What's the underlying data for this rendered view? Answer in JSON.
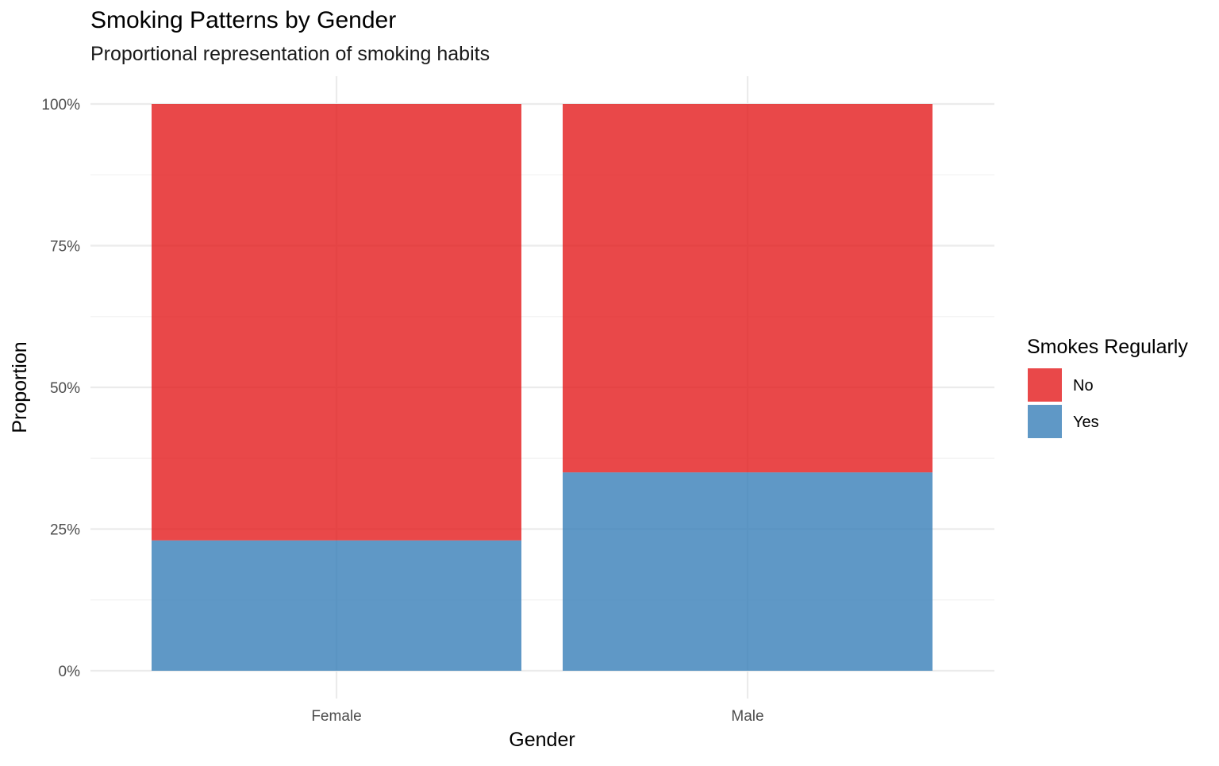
{
  "chart_data": {
    "type": "bar",
    "stacked": true,
    "normalized": true,
    "title": "Smoking Patterns by Gender",
    "subtitle": "Proportional representation of smoking habits",
    "xlabel": "Gender",
    "ylabel": "Proportion",
    "categories": [
      "Female",
      "Male"
    ],
    "series": [
      {
        "name": "No",
        "values": [
          0.77,
          0.65
        ],
        "color": "#E41A1C"
      },
      {
        "name": "Yes",
        "values": [
          0.23,
          0.35
        ],
        "color": "#377EB8"
      }
    ],
    "ylim": [
      0,
      1
    ],
    "yticks": [
      0,
      0.25,
      0.5,
      0.75,
      1
    ],
    "ytick_labels": [
      "0%",
      "25%",
      "50%",
      "75%",
      "100%"
    ],
    "grid": true,
    "legend": {
      "title": "Smokes Regularly",
      "position": "right",
      "items": [
        "No",
        "Yes"
      ]
    }
  }
}
